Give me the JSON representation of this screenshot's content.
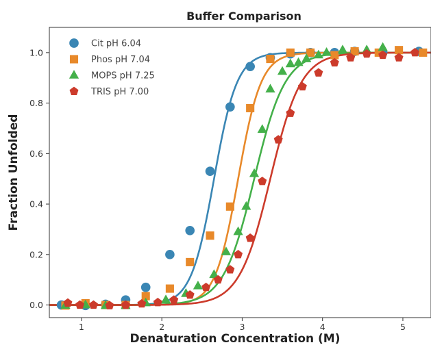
{
  "chart_data": {
    "type": "scatter",
    "title": "Buffer Comparison",
    "xlabel": "Denaturation Concentration (M)",
    "ylabel": "Fraction Unfolded",
    "xlim": [
      0.6,
      5.35
    ],
    "ylim": [
      -0.05,
      1.1
    ],
    "xticks": [
      1,
      2,
      3,
      4,
      5
    ],
    "yticks": [
      0.0,
      0.2,
      0.4,
      0.6,
      0.8,
      1.0
    ],
    "ytick_labels": [
      "0.0",
      "0.2",
      "0.4",
      "0.6",
      "0.8",
      "1.0"
    ],
    "grid": false,
    "legend_position": "upper-left",
    "series": [
      {
        "name": "Cit pH 6.04",
        "marker": "circle",
        "color": "#3a86b4",
        "fit": {
          "midpoint": 2.65,
          "slope": 7.0
        },
        "x": [
          0.75,
          1.05,
          1.3,
          1.55,
          1.8,
          2.1,
          2.35,
          2.6,
          2.85,
          3.1,
          3.35,
          3.6,
          3.85,
          4.15,
          4.4,
          4.75,
          5.2
        ],
        "y": [
          0.0,
          -0.002,
          0.003,
          0.02,
          0.07,
          0.2,
          0.295,
          0.53,
          0.785,
          0.945,
          0.98,
          0.995,
          1.0,
          1.0,
          1.005,
          1.0,
          1.005
        ]
      },
      {
        "name": "Phos pH 7.04",
        "marker": "square",
        "color": "#e8892a",
        "fit": {
          "midpoint": 2.95,
          "slope": 7.0
        },
        "x": [
          0.8,
          1.05,
          1.3,
          1.55,
          1.8,
          2.1,
          2.35,
          2.6,
          2.85,
          3.1,
          3.35,
          3.6,
          3.85,
          4.15,
          4.4,
          4.7,
          4.95,
          5.25
        ],
        "y": [
          -0.002,
          0.007,
          0.0,
          0.0,
          0.035,
          0.065,
          0.17,
          0.275,
          0.39,
          0.78,
          0.975,
          1.0,
          1.0,
          0.99,
          1.005,
          1.0,
          1.01,
          1.0
        ]
      },
      {
        "name": "MOPS pH 7.25",
        "marker": "triangle",
        "color": "#44b04a",
        "fit": {
          "midpoint": 3.15,
          "slope": 5.2
        },
        "x": [
          0.8,
          1.05,
          1.3,
          1.55,
          1.8,
          2.05,
          2.3,
          2.45,
          2.65,
          2.8,
          2.95,
          3.05,
          3.15,
          3.25,
          3.35,
          3.5,
          3.6,
          3.7,
          3.8,
          3.95,
          4.05,
          4.25,
          4.55,
          4.75
        ],
        "y": [
          -0.002,
          0.0,
          -0.003,
          -0.003,
          0.008,
          0.02,
          0.045,
          0.075,
          0.12,
          0.21,
          0.29,
          0.39,
          0.52,
          0.695,
          0.855,
          0.925,
          0.955,
          0.96,
          0.975,
          0.99,
          1.0,
          1.01,
          1.01,
          1.02
        ]
      },
      {
        "name": "TRIS pH 7.00",
        "marker": "pentagon",
        "color": "#cc3b2b",
        "fit": {
          "midpoint": 3.35,
          "slope": 5.2
        },
        "x": [
          0.83,
          0.98,
          1.15,
          1.35,
          1.55,
          1.75,
          1.95,
          2.15,
          2.35,
          2.55,
          2.7,
          2.85,
          2.95,
          3.1,
          3.25,
          3.45,
          3.6,
          3.75,
          3.95,
          4.15,
          4.35,
          4.55,
          4.75,
          4.95,
          5.15
        ],
        "y": [
          0.008,
          0.0,
          0.0,
          -0.002,
          0.0,
          0.005,
          0.01,
          0.02,
          0.04,
          0.07,
          0.1,
          0.14,
          0.2,
          0.265,
          0.49,
          0.655,
          0.76,
          0.865,
          0.92,
          0.96,
          0.98,
          0.995,
          0.99,
          0.98,
          1.0
        ]
      }
    ]
  }
}
